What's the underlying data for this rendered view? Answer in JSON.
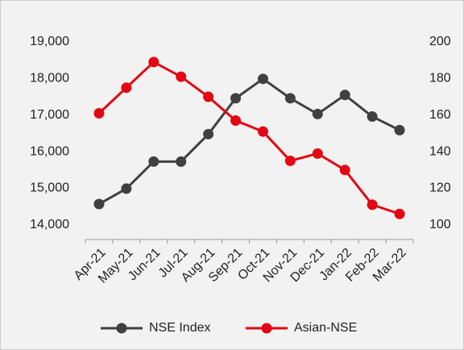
{
  "chart_data": {
    "type": "line",
    "categories": [
      "Apr-21",
      "May-21",
      "Jun-21",
      "Jul-21",
      "Aug-21",
      "Sep-21",
      "Oct-21",
      "Nov-21",
      "Dec-21",
      "Jan-22",
      "Feb-22",
      "Mar-22"
    ],
    "series": [
      {
        "name": "NSE Index",
        "color": "#404040",
        "values": [
          14570,
          14990,
          15730,
          15730,
          16480,
          17460,
          17990,
          17460,
          17030,
          17550,
          16960,
          16590
        ]
      },
      {
        "name": "Asian-NSE",
        "color": "#e30613",
        "axis": "y2",
        "values": [
          161,
          175,
          189,
          181,
          170,
          157,
          151,
          135,
          139,
          130,
          111,
          106
        ]
      }
    ],
    "ylim": [
      13600,
      19000
    ],
    "yticks": [
      {
        "value": 14000,
        "label": "14,000"
      },
      {
        "value": 15000,
        "label": "15,000"
      },
      {
        "value": 16000,
        "label": "16,000"
      },
      {
        "value": 17000,
        "label": "17,000"
      },
      {
        "value": 18000,
        "label": "18,000"
      },
      {
        "value": 19000,
        "label": "19,000"
      }
    ],
    "y2lim": [
      92,
      200
    ],
    "y2ticks": [
      100,
      120,
      140,
      160,
      180,
      200
    ],
    "legend": "bottom"
  }
}
